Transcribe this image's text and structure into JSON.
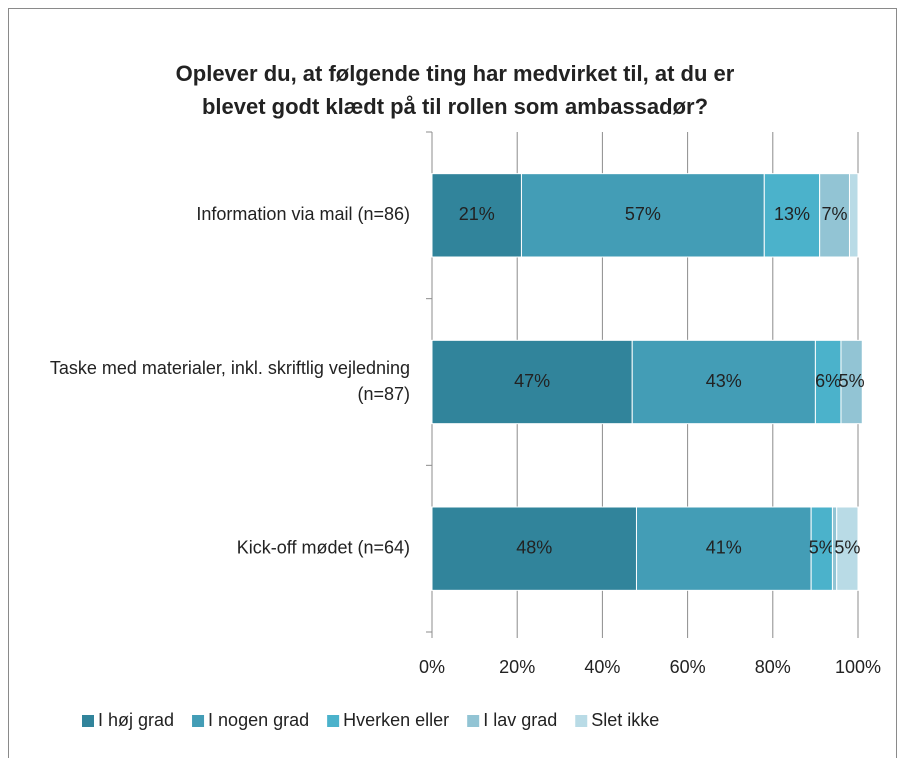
{
  "chart_data": {
    "type": "stacked_barh",
    "title": [
      "Oplever du, at følgende ting har medvirket til, at du er",
      "blevet godt klædt på til rollen som ambassadør?"
    ],
    "categories": [
      "Information via mail (n=86)",
      "Taske med materialer, inkl. skriftlig vejledning (n=87)",
      "Kick-off mødet (n=64)"
    ],
    "series": [
      {
        "name": "I høj grad",
        "color": "#31849b",
        "values": [
          21,
          47,
          48
        ],
        "value_labels": [
          "21%",
          "47%",
          "48%"
        ]
      },
      {
        "name": "I nogen grad",
        "color": "#439db6",
        "values": [
          57,
          43,
          41
        ],
        "value_labels": [
          "57%",
          "43%",
          "41%"
        ]
      },
      {
        "name": "Hverken eller",
        "color": "#4bb2cb",
        "values": [
          13,
          6,
          5
        ],
        "value_labels": [
          "13%",
          "6%",
          "5%"
        ]
      },
      {
        "name": "I lav grad",
        "color": "#92c4d4",
        "values": [
          7,
          5,
          1
        ],
        "value_labels": [
          "7%",
          "5%",
          null
        ]
      },
      {
        "name": "Slet ikke",
        "color": "#b9dbe6",
        "values": [
          2,
          0,
          5
        ],
        "value_labels": [
          null,
          null,
          "5%"
        ]
      }
    ],
    "xlim": [
      0,
      100
    ],
    "xticks": [
      {
        "value": 0,
        "label": "0%"
      },
      {
        "value": 20,
        "label": "20%"
      },
      {
        "value": 40,
        "label": "40%"
      },
      {
        "value": 60,
        "label": "60%"
      },
      {
        "value": 80,
        "label": "80%"
      },
      {
        "value": 100,
        "label": "100%"
      }
    ],
    "grid": true,
    "legend": "bottom"
  }
}
